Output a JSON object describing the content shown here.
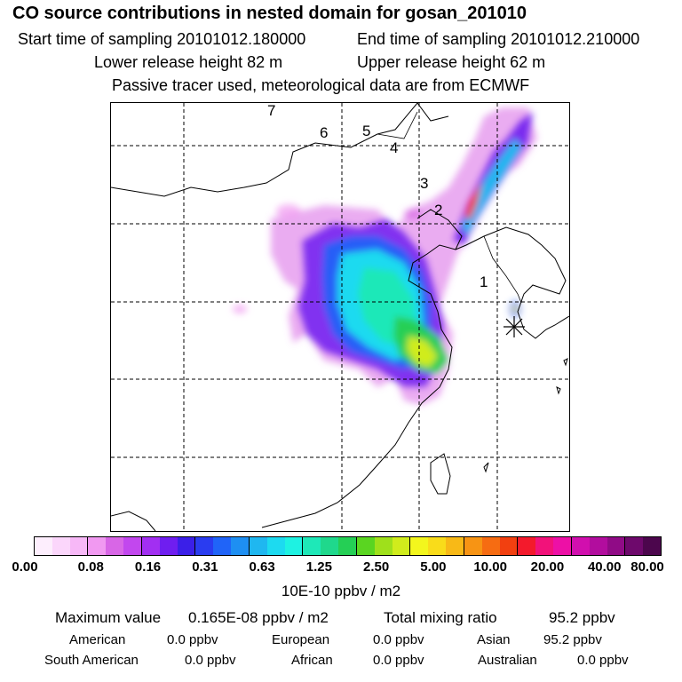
{
  "title": "CO  source contributions in nested domain for gosan_201010",
  "header": {
    "start_label": "Start time of sampling 20101012.180000",
    "end_label": "End time of sampling 20101012.210000",
    "lower_label": "Lower release height   82 m",
    "upper_label": "Upper release height   62 m",
    "tracer_note": "Passive tracer used, meteorological data are from ECMWF"
  },
  "map": {
    "trajectory_points": [
      "1",
      "2",
      "3",
      "4",
      "5",
      "6",
      "7"
    ],
    "receptor_marker": "asterisk-icon"
  },
  "colorbar": {
    "colors": [
      "#fdeefd",
      "#fbd6fb",
      "#f7b8f7",
      "#f199f1",
      "#d866e6",
      "#c247ee",
      "#a22ff2",
      "#6f1ef0",
      "#3b1fe8",
      "#2a3cf0",
      "#2064f8",
      "#1e8ff2",
      "#1fb7f0",
      "#1ddaf0",
      "#1ef2e2",
      "#1ee8b8",
      "#1fd88c",
      "#25cf55",
      "#5ad521",
      "#9fe01b",
      "#d0ec1c",
      "#f3f61d",
      "#f9dc1a",
      "#f8b917",
      "#f79414",
      "#f66c12",
      "#f24010",
      "#f31a2c",
      "#f2127a",
      "#ed10a6",
      "#d10fae",
      "#b20d9e",
      "#900b86",
      "#6e096c",
      "#4c064d"
    ],
    "labels": [
      "0.00",
      "0.08",
      "0.16",
      "0.31",
      "0.63",
      "1.25",
      "2.50",
      "5.00",
      "10.00",
      "20.00",
      "40.00",
      "80.00"
    ],
    "unit": "10E-10 ppbv / m2"
  },
  "summary": {
    "max_label": "Maximum value",
    "max_value": "0.165E-08 ppbv / m2",
    "total_label": "Total mixing ratio",
    "total_value": "95.2 ppbv",
    "regions": [
      {
        "name": "American",
        "value": "0.0 ppbv"
      },
      {
        "name": "European",
        "value": "0.0 ppbv"
      },
      {
        "name": "Asian",
        "value": "95.2 ppbv"
      },
      {
        "name": "South American",
        "value": "0.0 ppbv"
      },
      {
        "name": "African",
        "value": "0.0 ppbv"
      },
      {
        "name": "Australian",
        "value": "0.0 ppbv"
      }
    ]
  }
}
